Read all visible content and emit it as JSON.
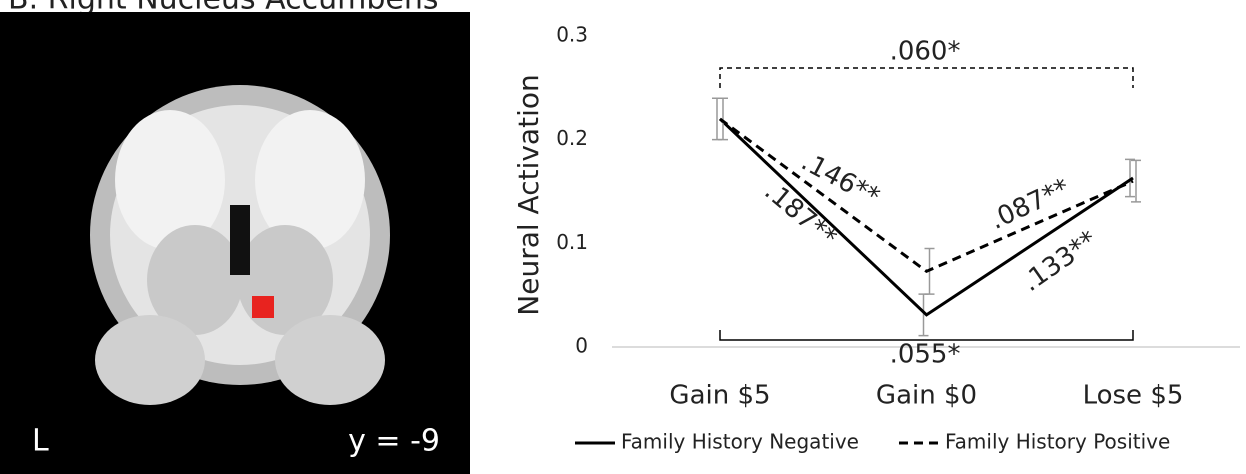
{
  "title": "B. Right Nucleus Accumbens",
  "image": {
    "hemisphere_label": "L",
    "slice_label": "y = -9"
  },
  "chart_data": {
    "type": "line",
    "y_label": "Neural Activation",
    "categories": [
      "Gain $5",
      "Gain $0",
      "Lose $5"
    ],
    "ylim": [
      0,
      0.3
    ],
    "yticks": [
      0,
      0.1,
      0.2,
      0.3
    ],
    "grid": false,
    "legend": "bottom",
    "series": [
      {
        "name": "Family History Negative",
        "color": "#000000",
        "dash": "solid",
        "values": [
          0.22,
          0.031,
          0.163
        ],
        "errors": [
          0.02,
          0.02,
          0.018
        ]
      },
      {
        "name": "Family History Positive",
        "color": "#000000",
        "dash": "dashed",
        "values": [
          0.22,
          0.073,
          0.16
        ],
        "errors": [
          0.02,
          0.022,
          0.02
        ]
      }
    ],
    "annotations": [
      ".060*",
      ".055*",
      ".146**",
      ".187**",
      ".087**",
      ".133**"
    ]
  }
}
